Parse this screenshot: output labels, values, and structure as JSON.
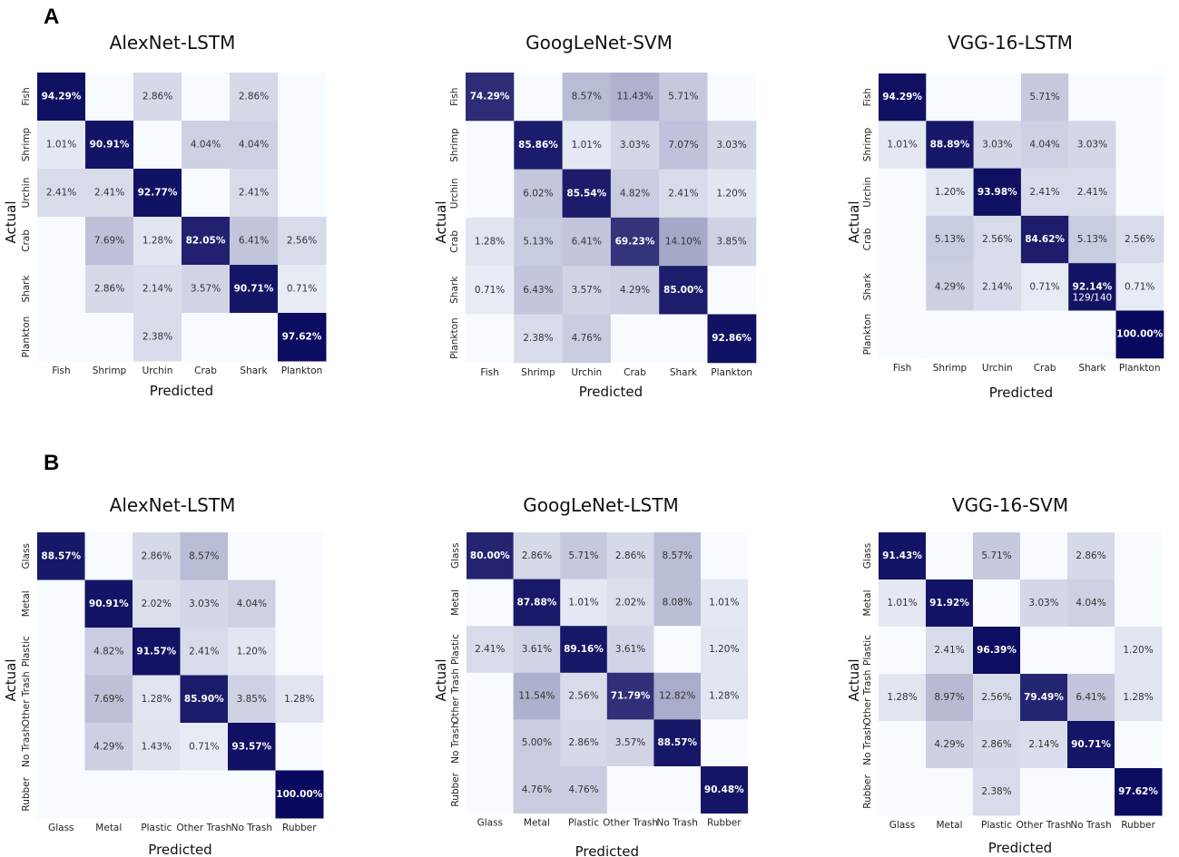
{
  "panels": [
    "A",
    "B"
  ],
  "colors": {
    "low": "#f7fbff",
    "high": "#08085e",
    "text_dark": "#333333",
    "text_light": "#ffffff"
  },
  "chart_data": [
    {
      "type": "heatmap",
      "panel": "A",
      "title": "AlexNet-LSTM",
      "xlabel": "Predicted",
      "ylabel": "Actual",
      "labels": [
        "Fish",
        "Shrimp",
        "Urchin",
        "Crab",
        "Shark",
        "Plankton"
      ],
      "cells": [
        [
          "94.29%",
          "",
          "2.86%",
          "",
          "2.86%",
          ""
        ],
        [
          "1.01%",
          "90.91%",
          "",
          "4.04%",
          "4.04%",
          ""
        ],
        [
          "2.41%",
          "2.41%",
          "92.77%",
          "",
          "2.41%",
          ""
        ],
        [
          "",
          "7.69%",
          "1.28%",
          "82.05%",
          "6.41%",
          "2.56%"
        ],
        [
          "",
          "2.86%",
          "2.14%",
          "3.57%",
          "90.71%",
          "0.71%"
        ],
        [
          "",
          "",
          "2.38%",
          "",
          "",
          "97.62%"
        ]
      ]
    },
    {
      "type": "heatmap",
      "panel": "A",
      "title": "GoogLeNet-SVM",
      "xlabel": "Predicted",
      "ylabel": "Actual",
      "labels": [
        "Fish",
        "Shrimp",
        "Urchin",
        "Crab",
        "Shark",
        "Plankton"
      ],
      "cells": [
        [
          "74.29%",
          "",
          "8.57%",
          "11.43%",
          "5.71%",
          ""
        ],
        [
          "",
          "85.86%",
          "1.01%",
          "3.03%",
          "7.07%",
          "3.03%"
        ],
        [
          "",
          "6.02%",
          "85.54%",
          "4.82%",
          "2.41%",
          "1.20%"
        ],
        [
          "1.28%",
          "5.13%",
          "6.41%",
          "69.23%",
          "14.10%",
          "3.85%"
        ],
        [
          "0.71%",
          "6.43%",
          "3.57%",
          "4.29%",
          "85.00%",
          ""
        ],
        [
          "",
          "2.38%",
          "4.76%",
          "",
          "",
          "92.86%"
        ]
      ]
    },
    {
      "type": "heatmap",
      "panel": "A",
      "title": "VGG-16-LSTM",
      "xlabel": "Predicted",
      "ylabel": "Actual",
      "labels": [
        "Fish",
        "Shrimp",
        "Urchin",
        "Crab",
        "Shark",
        "Plankton"
      ],
      "cells": [
        [
          "94.29%",
          "",
          "",
          "5.71%",
          "",
          ""
        ],
        [
          "1.01%",
          "88.89%",
          "3.03%",
          "4.04%",
          "3.03%",
          ""
        ],
        [
          "",
          "1.20%",
          "93.98%",
          "2.41%",
          "2.41%",
          ""
        ],
        [
          "",
          "5.13%",
          "2.56%",
          "84.62%",
          "5.13%",
          "2.56%"
        ],
        [
          "",
          "4.29%",
          "2.14%",
          "0.71%",
          "92.14%",
          "0.71%"
        ],
        [
          "",
          "",
          "",
          "",
          "",
          "100.00%"
        ]
      ],
      "extra": [
        {
          "row": 4,
          "col": 4,
          "text": "129/140"
        }
      ]
    },
    {
      "type": "heatmap",
      "panel": "B",
      "title": "AlexNet-LSTM",
      "xlabel": "Predicted",
      "ylabel": "Actual",
      "labels": [
        "Glass",
        "Metal",
        "Plastic",
        "Other Trash",
        "No Trash",
        "Rubber"
      ],
      "cells": [
        [
          "88.57%",
          "",
          "2.86%",
          "8.57%",
          "",
          ""
        ],
        [
          "",
          "90.91%",
          "2.02%",
          "3.03%",
          "4.04%",
          ""
        ],
        [
          "",
          "4.82%",
          "91.57%",
          "2.41%",
          "1.20%",
          ""
        ],
        [
          "",
          "7.69%",
          "1.28%",
          "85.90%",
          "3.85%",
          "1.28%"
        ],
        [
          "",
          "4.29%",
          "1.43%",
          "0.71%",
          "93.57%",
          ""
        ],
        [
          "",
          "",
          "",
          "",
          "",
          "100.00%"
        ]
      ]
    },
    {
      "type": "heatmap",
      "panel": "B",
      "title": "GoogLeNet-LSTM",
      "xlabel": "Predicted",
      "ylabel": "Actual",
      "labels": [
        "Glass",
        "Metal",
        "Plastic",
        "Other Trash",
        "No Trash",
        "Rubber"
      ],
      "cells": [
        [
          "80.00%",
          "2.86%",
          "5.71%",
          "2.86%",
          "8.57%",
          ""
        ],
        [
          "",
          "87.88%",
          "1.01%",
          "2.02%",
          "8.08%",
          "1.01%"
        ],
        [
          "2.41%",
          "3.61%",
          "89.16%",
          "3.61%",
          "",
          "1.20%"
        ],
        [
          "",
          "11.54%",
          "2.56%",
          "71.79%",
          "12.82%",
          "1.28%"
        ],
        [
          "",
          "5.00%",
          "2.86%",
          "3.57%",
          "88.57%",
          ""
        ],
        [
          "",
          "4.76%",
          "4.76%",
          "",
          "",
          "90.48%"
        ]
      ]
    },
    {
      "type": "heatmap",
      "panel": "B",
      "title": "VGG-16-SVM",
      "xlabel": "Predicted",
      "ylabel": "Actual",
      "labels": [
        "Glass",
        "Metal",
        "Plastic",
        "Other Trash",
        "No Trash",
        "Rubber"
      ],
      "cells": [
        [
          "91.43%",
          "",
          "5.71%",
          "",
          "2.86%",
          ""
        ],
        [
          "1.01%",
          "91.92%",
          "",
          "3.03%",
          "4.04%",
          ""
        ],
        [
          "",
          "2.41%",
          "96.39%",
          "",
          "",
          "1.20%"
        ],
        [
          "1.28%",
          "8.97%",
          "2.56%",
          "79.49%",
          "6.41%",
          "1.28%"
        ],
        [
          "",
          "4.29%",
          "2.86%",
          "2.14%",
          "90.71%",
          ""
        ],
        [
          "",
          "",
          "2.38%",
          "",
          "",
          "97.62%"
        ]
      ]
    }
  ]
}
